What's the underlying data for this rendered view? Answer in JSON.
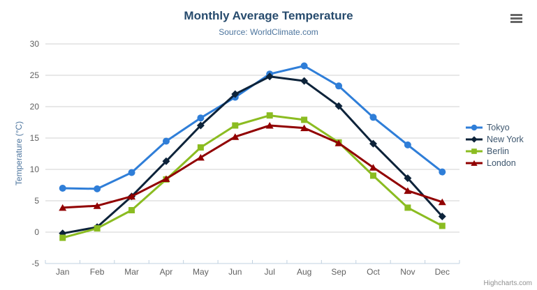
{
  "credits": {
    "text": "Highcharts.com"
  },
  "menu": {
    "icon": "hamburger-icon"
  },
  "theme": {
    "background": "#ffffff",
    "title_color": "#274b6d",
    "subtitle_color": "#4d759e",
    "axis_title_color": "#4d759e",
    "axis_label_color": "#606060",
    "grid_color": "#d2d2d2",
    "axis_line_color": "#c0d0e0",
    "legend_text_color": "#3e576f",
    "credits_color": "#909090",
    "menu_icon_color": "#666666"
  },
  "chart_data": {
    "type": "line",
    "title": "Monthly Average Temperature",
    "subtitle": "Source: WorldClimate.com",
    "xlabel": "",
    "ylabel": "Temperature (°C)",
    "ylim": [
      -5,
      30
    ],
    "y_ticks": [
      -5,
      0,
      5,
      10,
      15,
      20,
      25,
      30
    ],
    "grid": true,
    "legend_position": "right",
    "categories": [
      "Jan",
      "Feb",
      "Mar",
      "Apr",
      "May",
      "Jun",
      "Jul",
      "Aug",
      "Sep",
      "Oct",
      "Nov",
      "Dec"
    ],
    "series": [
      {
        "name": "Tokyo",
        "color": "#2f7ed8",
        "marker": "circle",
        "values": [
          7.0,
          6.9,
          9.5,
          14.5,
          18.2,
          21.5,
          25.2,
          26.5,
          23.3,
          18.3,
          13.9,
          9.6
        ]
      },
      {
        "name": "New York",
        "color": "#0d233a",
        "marker": "diamond",
        "values": [
          -0.2,
          0.8,
          5.7,
          11.3,
          17.0,
          22.0,
          24.8,
          24.1,
          20.1,
          14.1,
          8.6,
          2.5
        ]
      },
      {
        "name": "Berlin",
        "color": "#8bbc21",
        "marker": "square",
        "values": [
          -0.9,
          0.6,
          3.5,
          8.4,
          13.5,
          17.0,
          18.6,
          17.9,
          14.3,
          9.0,
          3.9,
          1.0
        ]
      },
      {
        "name": "London",
        "color": "#910000",
        "marker": "triangle",
        "values": [
          3.9,
          4.2,
          5.7,
          8.5,
          11.9,
          15.2,
          17.0,
          16.6,
          14.2,
          10.3,
          6.6,
          4.8
        ]
      }
    ]
  }
}
